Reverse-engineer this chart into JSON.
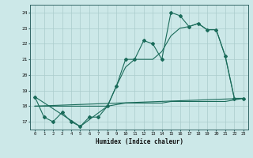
{
  "xlabel": "Humidex (Indice chaleur)",
  "background_color": "#cce8e8",
  "grid_color": "#aacccc",
  "line_color": "#1a6b5a",
  "xlim": [
    -0.5,
    23.5
  ],
  "ylim": [
    16.5,
    24.5
  ],
  "xtick_vals": [
    0,
    1,
    2,
    3,
    4,
    5,
    6,
    7,
    8,
    9,
    10,
    11,
    12,
    13,
    14,
    15,
    16,
    17,
    18,
    19,
    20,
    21,
    22,
    23
  ],
  "xtick_labels": [
    "0",
    "1",
    "2",
    "3",
    "4",
    "5",
    "6",
    "7",
    "8",
    "9",
    "10",
    "11",
    "12",
    "13",
    "14",
    "15",
    "16",
    "17",
    "18",
    "19",
    "20",
    "21",
    "22",
    "23"
  ],
  "ytick_vals": [
    17,
    18,
    19,
    20,
    21,
    22,
    23,
    24
  ],
  "ytick_labels": [
    "17",
    "18",
    "19",
    "20",
    "21",
    "22",
    "23",
    "24"
  ],
  "series1_x": [
    0,
    1,
    2,
    3,
    4,
    5,
    6,
    7,
    8,
    9,
    10,
    11,
    12,
    13,
    14,
    15,
    16,
    17,
    18,
    19,
    20,
    21,
    22,
    23
  ],
  "series1_y": [
    18.6,
    17.3,
    17.0,
    17.6,
    17.0,
    16.7,
    17.3,
    17.3,
    18.0,
    19.3,
    21.0,
    21.0,
    22.2,
    22.0,
    21.0,
    24.0,
    23.8,
    23.1,
    23.3,
    22.9,
    22.9,
    21.2,
    18.5,
    18.5
  ],
  "series2_x": [
    0,
    5,
    8,
    9,
    10,
    11,
    12,
    13,
    14,
    15,
    16,
    17,
    18,
    19,
    20,
    21,
    22,
    23
  ],
  "series2_y": [
    18.6,
    16.7,
    18.0,
    19.3,
    20.5,
    21.0,
    21.0,
    21.0,
    21.5,
    22.5,
    23.0,
    23.1,
    23.3,
    22.9,
    22.9,
    21.2,
    18.5,
    18.5
  ],
  "series3_x": [
    0,
    23
  ],
  "series3_y": [
    18.0,
    18.5
  ],
  "series4_x": [
    0,
    1,
    2,
    3,
    4,
    5,
    6,
    7,
    8,
    9,
    10,
    11,
    12,
    13,
    14,
    15,
    16,
    17,
    18,
    19,
    20,
    21,
    22,
    23
  ],
  "series4_y": [
    18.0,
    18.0,
    18.0,
    18.0,
    18.0,
    18.0,
    18.0,
    18.0,
    18.0,
    18.1,
    18.2,
    18.2,
    18.2,
    18.2,
    18.2,
    18.3,
    18.3,
    18.3,
    18.3,
    18.3,
    18.3,
    18.3,
    18.4,
    18.5
  ]
}
